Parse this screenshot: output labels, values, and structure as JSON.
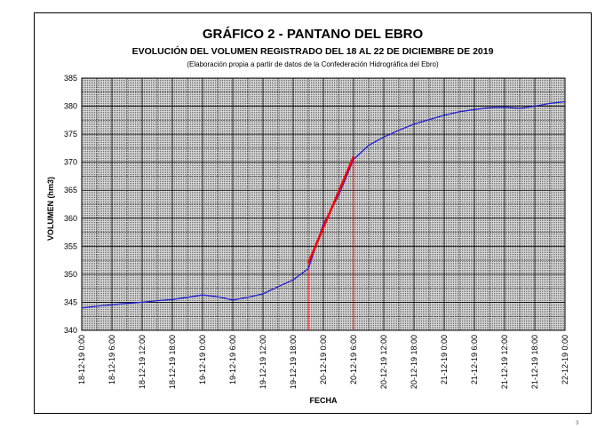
{
  "page_number": "3",
  "chart_data": {
    "type": "line",
    "title": "GRÁFICO 2 - PANTANO DEL EBRO",
    "subtitle": "EVOLUCIÓN DEL VOLUMEN REGISTRADO DEL 18 AL 22 DE DICIEMBRE DE 2019",
    "note": "(Elaboración propia a partir de datos de la Confederación Hidrográfica del Ebro)",
    "xlabel": "FECHA",
    "ylabel": "VOLUMEN (hm3)",
    "ylim": [
      340,
      385
    ],
    "yticks": [
      "340",
      "345",
      "350",
      "355",
      "360",
      "365",
      "370",
      "375",
      "380",
      "385"
    ],
    "x_ticks": [
      "18-12-19 0:00",
      "18-12-19 6:00",
      "18-12-19 12:00",
      "18-12-19 18:00",
      "19-12-19 0:00",
      "19-12-19 6:00",
      "19-12-19 12:00",
      "19-12-19 18:00",
      "20-12-19 0:00",
      "20-12-19 6:00",
      "20-12-19 12:00",
      "20-12-19 18:00",
      "21-12-19 0:00",
      "21-12-19 6:00",
      "21-12-19 12:00",
      "21-12-19 18:00",
      "22-12-19 0:00"
    ],
    "grid": true,
    "colors": {
      "series": "#1f1fd2",
      "trend": "#ff0000",
      "plot_bg": "#c0c0c0",
      "grid": "#000000"
    },
    "series": [
      {
        "values": [
          {
            "x": "18-12-19 0:00",
            "y": 344.0
          },
          {
            "x": "18-12-19 3:00",
            "y": 344.3
          },
          {
            "x": "18-12-19 6:00",
            "y": 344.6
          },
          {
            "x": "18-12-19 9:00",
            "y": 344.8
          },
          {
            "x": "18-12-19 12:00",
            "y": 345.0
          },
          {
            "x": "18-12-19 15:00",
            "y": 345.3
          },
          {
            "x": "18-12-19 18:00",
            "y": 345.5
          },
          {
            "x": "18-12-19 21:00",
            "y": 345.9
          },
          {
            "x": "19-12-19 0:00",
            "y": 346.3
          },
          {
            "x": "19-12-19 3:00",
            "y": 346.0
          },
          {
            "x": "19-12-19 6:00",
            "y": 345.4
          },
          {
            "x": "19-12-19 9:00",
            "y": 345.9
          },
          {
            "x": "19-12-19 12:00",
            "y": 346.5
          },
          {
            "x": "19-12-19 15:00",
            "y": 347.8
          },
          {
            "x": "19-12-19 18:00",
            "y": 349.0
          },
          {
            "x": "19-12-19 21:00",
            "y": 351.0
          },
          {
            "x": "20-12-19 0:00",
            "y": 359.0
          },
          {
            "x": "20-12-19 3:00",
            "y": 364.0
          },
          {
            "x": "20-12-19 6:00",
            "y": 370.5
          },
          {
            "x": "20-12-19 9:00",
            "y": 373.0
          },
          {
            "x": "20-12-19 12:00",
            "y": 374.5
          },
          {
            "x": "20-12-19 15:00",
            "y": 375.7
          },
          {
            "x": "20-12-19 18:00",
            "y": 376.8
          },
          {
            "x": "20-12-19 21:00",
            "y": 377.6
          },
          {
            "x": "21-12-19 0:00",
            "y": 378.4
          },
          {
            "x": "21-12-19 3:00",
            "y": 379.0
          },
          {
            "x": "21-12-19 6:00",
            "y": 379.4
          },
          {
            "x": "21-12-19 9:00",
            "y": 379.7
          },
          {
            "x": "21-12-19 12:00",
            "y": 379.8
          },
          {
            "x": "21-12-19 15:00",
            "y": 379.6
          },
          {
            "x": "21-12-19 18:00",
            "y": 380.0
          },
          {
            "x": "21-12-19 21:00",
            "y": 380.5
          },
          {
            "x": "22-12-19 0:00",
            "y": 380.8
          }
        ]
      }
    ],
    "trend": {
      "start": {
        "x": "19-12-19 21:00",
        "y": 352.0
      },
      "end": {
        "x": "20-12-19 6:00",
        "y": 371.0
      }
    },
    "markers": [
      {
        "x": "19-12-19 21:00",
        "y": 352.0
      },
      {
        "x": "20-12-19 6:00",
        "y": 371.0
      }
    ]
  }
}
